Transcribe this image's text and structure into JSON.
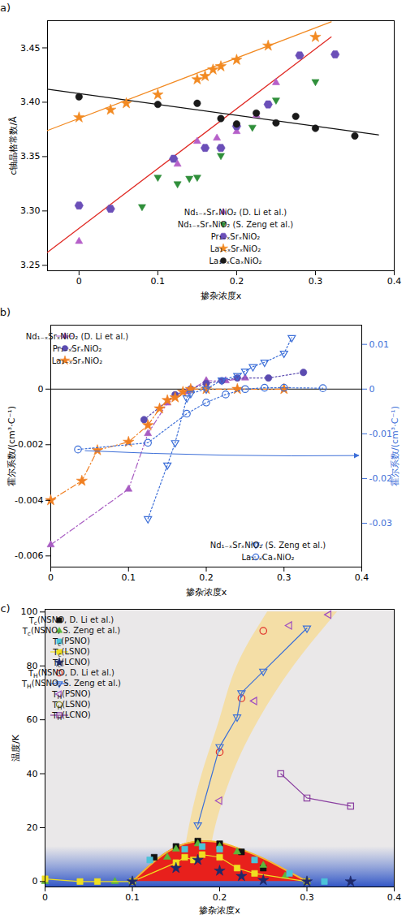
{
  "chart_data": [
    {
      "type": "scatter",
      "panel_label": "(a)",
      "x_label": "掺杂浓度x",
      "y_label": "c轴晶格常数/Å",
      "xlim": [
        -0.04,
        0.4
      ],
      "xticks": [
        0,
        0.1,
        0.2,
        0.3,
        0.4
      ],
      "ylim": [
        3.245,
        3.475
      ],
      "yticks": [
        3.25,
        {
          "value": 3.3,
          "label": "3.30"
        },
        3.35,
        {
          "value": 3.4,
          "label": "3.40"
        },
        3.45
      ],
      "legend": "bottom-right",
      "series": [
        {
          "name": "Nd₁₋ₓSrₓNiO₂ (D. Li et al.)",
          "color": "#b660c9",
          "marker": "triangle",
          "x": [
            0,
            0.125,
            0.15,
            0.175,
            0.2,
            0.225,
            0.25
          ],
          "values": [
            3.272,
            3.343,
            3.364,
            3.367,
            3.373,
            3.388,
            3.418
          ]
        },
        {
          "name": "Nd₁₋ₓSrₓNiO₂ (S. Zeng et al.)",
          "color": "#2f8f3a",
          "marker": "triangle-down",
          "x": [
            0.08,
            0.1,
            0.125,
            0.14,
            0.15,
            0.18,
            0.22,
            0.25,
            0.3
          ],
          "values": [
            3.304,
            3.331,
            3.325,
            3.33,
            3.331,
            3.351,
            3.377,
            3.402,
            3.419
          ]
        },
        {
          "name": "Pr₁₋ₓSrₓNiO₂",
          "color": "#6b4fb8",
          "marker": "hexagon",
          "x": [
            0,
            0.04,
            0.12,
            0.16,
            0.18,
            0.2,
            0.24,
            0.28,
            0.325
          ],
          "values": [
            3.305,
            3.302,
            3.348,
            3.358,
            3.358,
            3.378,
            3.398,
            3.443,
            3.444
          ]
        },
        {
          "name": "La₁₋ₓSrₓNiO₂",
          "color": "#f28a22",
          "marker": "star",
          "x": [
            0,
            0.04,
            0.06,
            0.1,
            0.15,
            0.16,
            0.17,
            0.18,
            0.2,
            0.24,
            0.3
          ],
          "values": [
            3.386,
            3.393,
            3.399,
            3.407,
            3.421,
            3.424,
            3.43,
            3.433,
            3.439,
            3.452,
            3.46
          ]
        },
        {
          "name": "La₁₋ₓCaₓNiO₂",
          "color": "#1a1a1a",
          "marker": "circle",
          "x": [
            0,
            0.1,
            0.15,
            0.18,
            0.2,
            0.225,
            0.25,
            0.275,
            0.3,
            0.35
          ],
          "values": [
            3.405,
            3.398,
            3.399,
            3.385,
            3.38,
            3.39,
            3.381,
            3.387,
            3.376,
            3.369
          ]
        }
      ],
      "fit_lines": [
        {
          "color": "#f28a22",
          "x": [
            -0.04,
            0.32
          ],
          "values": [
            3.374,
            3.474
          ]
        },
        {
          "color": "#e02c26",
          "x": [
            -0.04,
            0.32
          ],
          "values": [
            3.262,
            3.46
          ]
        },
        {
          "color": "#111111",
          "x": [
            -0.04,
            0.38
          ],
          "values": [
            3.412,
            3.37
          ]
        }
      ]
    },
    {
      "type": "line",
      "panel_label": "(b)",
      "x_label": "掺杂浓度x",
      "y_label": "霍尔系数/(cm³·C⁻¹)",
      "y2_label": "霍尔系数/(cm³·C⁻¹)",
      "xlim": [
        0,
        0.4
      ],
      "xticks": [
        0,
        0.1,
        0.2,
        0.3,
        0.4
      ],
      "ylim": [
        -0.0064,
        0.0023
      ],
      "yticks": [
        -0.006,
        -0.004,
        -0.002,
        0
      ],
      "y2lim": [
        -0.0398,
        0.0143
      ],
      "y2ticks": [
        -0.03,
        -0.02,
        -0.01,
        0,
        0.01
      ],
      "rule_y": 0,
      "legend": "top-left",
      "series": [
        {
          "name": "Nd₁₋ₓSrₓNiO₂ (D. Li et al.)",
          "color": "#a85cc2",
          "marker": "triangle",
          "line_style": "dashdot",
          "x": [
            0,
            0.1,
            0.125,
            0.15,
            0.175,
            0.2,
            0.225,
            0.25
          ],
          "values": [
            -0.0056,
            -0.0036,
            -0.0016,
            -0.0005,
            -0.0001,
            0.0003,
            0.0003,
            0.0004
          ]
        },
        {
          "name": "Pr₁₋ₓSrₓNiO₂",
          "color": "#5b4bb0",
          "marker": "circle",
          "line_style": "dotted",
          "x": [
            0.12,
            0.16,
            0.18,
            0.2,
            0.22,
            0.24,
            0.28,
            0.325
          ],
          "values": [
            -0.0011,
            -0.0002,
            0,
            0.0002,
            0.0003,
            0.0004,
            0.0004,
            0.0006
          ]
        },
        {
          "name": "La₁₋ₓSrₓNiO₂",
          "color": "#f07f22",
          "marker": "star",
          "line_style": "dashdot",
          "x": [
            0,
            0.04,
            0.06,
            0.1,
            0.125,
            0.14,
            0.15,
            0.16,
            0.17,
            0.18,
            0.2,
            0.24,
            0.3
          ],
          "values": [
            -0.004,
            -0.0033,
            -0.0022,
            -0.0019,
            -0.0013,
            -0.0007,
            -0.0004,
            -0.0003,
            -0.0001,
            0,
            0,
            0,
            0
          ]
        },
        {
          "name": "Nd₁₋ₓSrₓNiO₂ (S. Zeng et al.)",
          "color": "#3d6fd8",
          "marker": "triangle-down-open",
          "line_style": "dotted",
          "axis": "y2",
          "x": [
            0.125,
            0.15,
            0.16,
            0.175,
            0.18,
            0.2,
            0.22,
            0.24,
            0.25,
            0.26,
            0.275,
            0.3,
            0.31
          ],
          "values": [
            -0.029,
            -0.017,
            -0.012,
            -0.002,
            -0.001,
            0,
            0.002,
            0.003,
            0.004,
            0.005,
            0.006,
            0.008,
            0.0115
          ]
        },
        {
          "name": "La₁₋ₓCaₓNiO₂",
          "color": "#3d6fd8",
          "marker": "circle-open",
          "line_style": "dotted",
          "axis": "y2",
          "x": [
            0.035,
            0.125,
            0.175,
            0.2,
            0.225,
            0.25,
            0.275,
            0.3,
            0.35
          ],
          "values": [
            -0.0135,
            -0.012,
            -0.0055,
            -0.003,
            -0.0012,
            0,
            0.0003,
            0.0003,
            0.0002
          ]
        }
      ]
    },
    {
      "type": "scatter",
      "panel_label": "(c)",
      "x_label": "掺杂浓度x",
      "y_label": "温度/K",
      "xlim": [
        0,
        0.4
      ],
      "xticks": [
        0,
        0.1,
        0.2,
        0.3,
        0.4
      ],
      "ylim": [
        -2,
        101
      ],
      "yticks": [
        0,
        20,
        40,
        60,
        80,
        100
      ],
      "legend": "top-left",
      "blue_band": [
        -2,
        13
      ],
      "dome": {
        "color": "#e8201c",
        "x": [
          0.1,
          0.12,
          0.14,
          0.16,
          0.18,
          0.2,
          0.22,
          0.24,
          0.26,
          0.28,
          0.3
        ],
        "values": [
          0,
          6,
          11,
          14,
          15,
          14.5,
          12.5,
          10,
          7,
          3.5,
          0
        ]
      },
      "band": {
        "color": "#f6dc9a",
        "y": [
          10,
          20,
          40,
          60,
          80,
          100
        ],
        "x_lower": [
          0.16,
          0.165,
          0.18,
          0.2,
          0.22,
          0.255
        ],
        "x_upper": [
          0.19,
          0.195,
          0.215,
          0.245,
          0.285,
          0.335
        ]
      },
      "series": [
        {
          "name": "Tc(NSNO, D. Li et al.)",
          "color": "#111111",
          "marker": "square",
          "x": [
            0.1,
            0.125,
            0.15,
            0.175,
            0.2,
            0.225,
            0.25,
            0.3
          ],
          "values": [
            0,
            9,
            13,
            15,
            14,
            11,
            5,
            0
          ]
        },
        {
          "name": "Tc(NSNO, S. Zeng et al.)",
          "color": "#5cb83a",
          "marker": "triangle",
          "x": [
            0,
            0.08,
            0.1,
            0.14,
            0.15,
            0.175,
            0.2,
            0.22,
            0.25,
            0.275,
            0.3
          ],
          "values": [
            0,
            0,
            0,
            9,
            12,
            14,
            13,
            11,
            6,
            2,
            0
          ]
        },
        {
          "name": "Tc(PSNO)",
          "color": "#4cc3d9",
          "marker": "square",
          "x": [
            0.12,
            0.16,
            0.18,
            0.2,
            0.24,
            0.28,
            0.32
          ],
          "values": [
            8,
            12,
            13,
            12,
            8,
            3,
            0
          ]
        },
        {
          "name": "Tc(LSNO)",
          "color": "#f0e020",
          "marker": "square",
          "line_style": "solid",
          "x": [
            0,
            0.04,
            0.06,
            0.1,
            0.15,
            0.16,
            0.17,
            0.18,
            0.2,
            0.22,
            0.24,
            0.3
          ],
          "values": [
            1,
            0,
            0,
            0,
            7,
            9,
            8,
            10,
            9,
            5,
            3,
            0
          ]
        },
        {
          "name": "Tc(LCNO)",
          "color": "#1f2a6b",
          "marker": "star",
          "x": [
            0.1,
            0.15,
            0.175,
            0.2,
            0.225,
            0.25,
            0.3,
            0.35
          ],
          "values": [
            0,
            5,
            8,
            4,
            2,
            0.5,
            0,
            0
          ]
        },
        {
          "name": "TH(NSNO, D. Li et al.)",
          "color": "#e0302a",
          "marker": "circle-open",
          "x": [
            0.2,
            0.225,
            0.25
          ],
          "values": [
            48,
            68,
            93
          ]
        },
        {
          "name": "TH(NSNO, S. Zeng et al.)",
          "color": "#3a6fd8",
          "marker": "triangle-down-open",
          "line_style": "solid",
          "x": [
            0.175,
            0.2,
            0.22,
            0.225,
            0.25,
            0.3
          ],
          "values": [
            21,
            50,
            61,
            70,
            78,
            94
          ]
        },
        {
          "name": "TH(PSNO)",
          "color": "#a050c0",
          "marker": "triangle-left-open",
          "x": [
            0.2,
            0.24,
            0.28,
            0.325
          ],
          "values": [
            30,
            67,
            95,
            99
          ]
        },
        {
          "name": "TH(LSNO)",
          "color": "#8a8a20",
          "marker": "circle-open",
          "x": [],
          "values": []
        },
        {
          "name": "TH(LCNO)",
          "color": "#8a3fa0",
          "marker": "square-open",
          "line_style": "solid",
          "x": [
            0.27,
            0.3,
            0.35
          ],
          "values": [
            40,
            31,
            28
          ]
        }
      ]
    }
  ]
}
